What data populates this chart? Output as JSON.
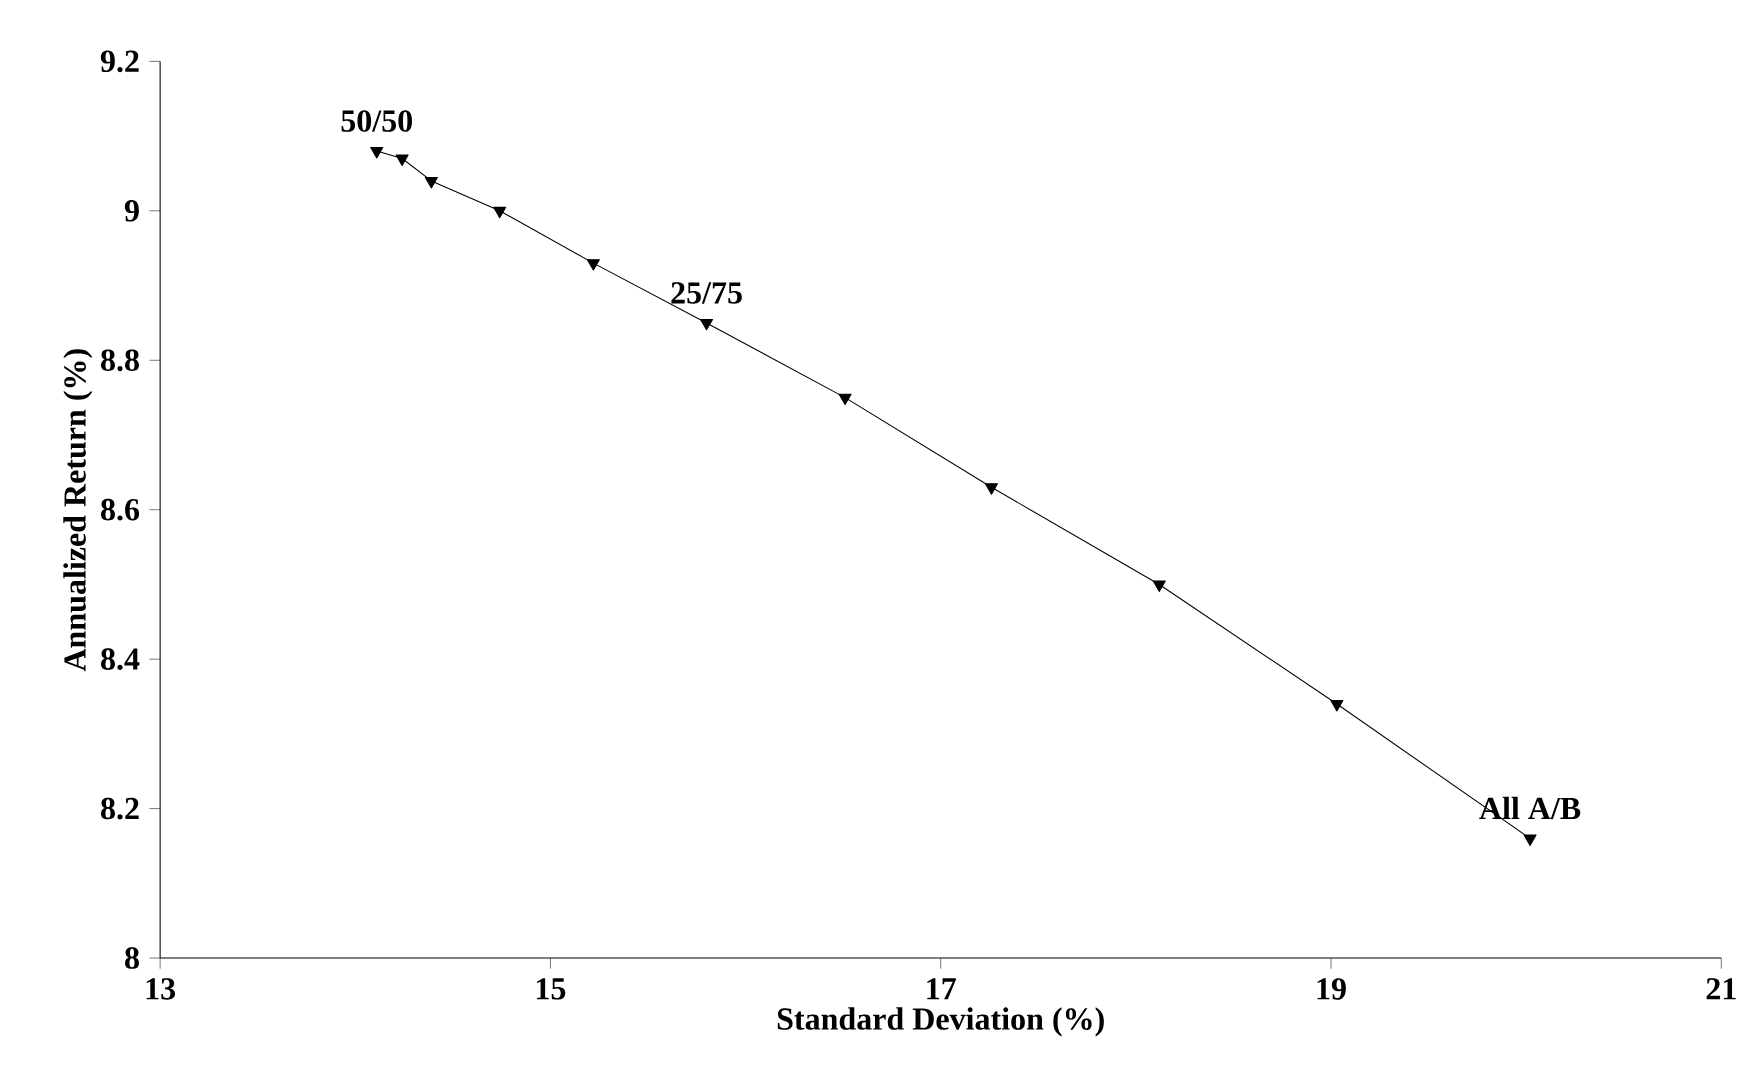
{
  "chart_data": {
    "type": "line",
    "xlabel": "Standard Deviation (%)",
    "ylabel": "Annualized Return (%)",
    "series": [
      {
        "color": "#000000",
        "x": [
          14.11,
          14.24,
          14.39,
          14.74,
          15.22,
          15.8,
          16.51,
          17.26,
          18.12,
          19.03,
          20.02
        ],
        "values": [
          9.08,
          9.07,
          9.04,
          9.0,
          8.93,
          8.85,
          8.75,
          8.63,
          8.5,
          8.34,
          8.16
        ]
      }
    ],
    "marker": "triangle",
    "annotations": [
      {
        "text": "50/50",
        "x": 14.11,
        "y": 9.08
      },
      {
        "text": "25/75",
        "x": 15.8,
        "y": 8.85
      },
      {
        "text": "All A/B",
        "x": 20.02,
        "y": 8.16
      }
    ],
    "xlim": [
      13,
      21
    ],
    "xticks": [
      13,
      15,
      17,
      19,
      21
    ],
    "ylim": [
      8,
      9.2
    ],
    "yticks": [
      8,
      8.2,
      8.4,
      8.6,
      8.8,
      9,
      9.2
    ],
    "grid": false
  }
}
